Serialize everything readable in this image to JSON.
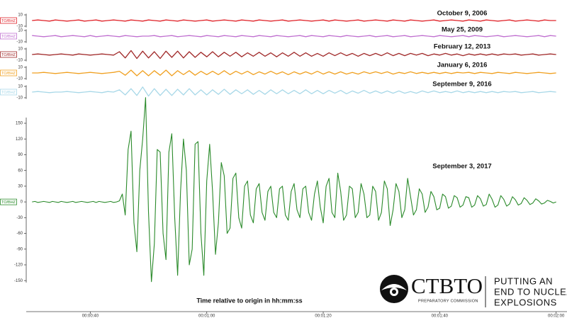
{
  "chart_data": [
    {
      "type": "line",
      "title": "October 9, 2006",
      "channel": "TO/BHZ",
      "color": "#e0242a",
      "x": [
        30,
        31,
        32,
        33,
        34,
        35,
        36,
        37,
        38,
        39,
        40,
        41,
        42,
        43,
        44,
        45,
        46,
        47,
        48,
        49,
        50,
        51,
        52,
        53,
        54,
        55,
        56,
        57,
        58,
        59,
        60,
        61,
        62,
        63,
        64,
        65,
        66,
        67,
        68,
        69,
        70,
        71,
        72,
        73,
        74,
        75,
        76,
        77,
        78,
        79,
        80,
        81,
        82,
        83,
        84,
        85,
        86,
        87,
        88,
        89,
        90,
        91,
        92,
        93,
        94,
        95,
        96,
        97,
        98,
        99,
        100,
        101,
        102,
        103,
        104,
        105,
        106,
        107,
        108,
        109,
        110,
        111,
        112,
        113,
        114,
        115,
        116,
        117,
        118,
        119,
        120
      ],
      "values": [
        0,
        1,
        0,
        -1,
        1,
        0,
        -1,
        0,
        1,
        -1,
        0,
        1,
        -1,
        0,
        1,
        0,
        -1,
        1,
        0,
        -1,
        1,
        0,
        -1,
        1,
        0,
        -1,
        1,
        0,
        -1,
        0,
        1,
        -1,
        0,
        1,
        0,
        -1,
        1,
        0,
        -1,
        1,
        0,
        -1,
        0,
        1,
        -1,
        0,
        1,
        0,
        -1,
        0,
        1,
        -1,
        1,
        0,
        -1,
        0,
        1,
        -1,
        0,
        1,
        0,
        -1,
        1,
        0,
        -1,
        1,
        0,
        -1,
        0,
        1,
        -1,
        0,
        1,
        0,
        -1,
        1,
        0,
        -1,
        1,
        0,
        -1,
        0,
        1,
        -1,
        0,
        1,
        0,
        -1,
        1,
        0,
        0
      ],
      "xlim": [
        29,
        121.5
      ],
      "ylim": [
        -12,
        12
      ],
      "yticks": [
        10,
        -10
      ]
    },
    {
      "type": "line",
      "title": "May 25, 2009",
      "channel": "TO/BHZ",
      "color": "#c070d0",
      "x": [
        30,
        31,
        32,
        33,
        34,
        35,
        36,
        37,
        38,
        39,
        40,
        41,
        42,
        43,
        44,
        45,
        46,
        47,
        48,
        49,
        50,
        51,
        52,
        53,
        54,
        55,
        56,
        57,
        58,
        59,
        60,
        61,
        62,
        63,
        64,
        65,
        66,
        67,
        68,
        69,
        70,
        71,
        72,
        73,
        74,
        75,
        76,
        77,
        78,
        79,
        80,
        81,
        82,
        83,
        84,
        85,
        86,
        87,
        88,
        89,
        90,
        91,
        92,
        93,
        94,
        95,
        96,
        97,
        98,
        99,
        100,
        101,
        102,
        103,
        104,
        105,
        106,
        107,
        108,
        109,
        110,
        111,
        112,
        113,
        114,
        115,
        116,
        117,
        118,
        119,
        120
      ],
      "values": [
        1,
        0,
        -1,
        0,
        1,
        -1,
        0,
        1,
        0,
        -1,
        1,
        -1,
        0,
        1,
        0,
        -1,
        1,
        0,
        -1,
        0,
        0,
        1,
        -1,
        0,
        1,
        -1,
        0,
        1,
        0,
        -1,
        1,
        0,
        -1,
        1,
        0,
        -1,
        1,
        0,
        -1,
        1,
        0,
        -1,
        1,
        0,
        -1,
        0,
        1,
        -1,
        1,
        0,
        -1,
        1,
        0,
        -1,
        1,
        0,
        -1,
        0,
        1,
        -1,
        0,
        1,
        -1,
        0,
        1,
        -1,
        0,
        1,
        0,
        -1,
        1,
        0,
        -1,
        0,
        1,
        -1,
        1,
        0,
        -1,
        0,
        1,
        -1,
        0,
        1,
        0,
        -1,
        0,
        1,
        -1,
        1,
        0
      ],
      "xlim": [
        29,
        121.5
      ],
      "ylim": [
        -12,
        12
      ],
      "yticks": [
        10,
        -10
      ]
    },
    {
      "type": "line",
      "title": "February 12, 2013",
      "channel": "TO/BHZ",
      "color": "#a02828",
      "x": [
        30,
        31,
        32,
        33,
        34,
        35,
        36,
        37,
        38,
        39,
        40,
        41,
        42,
        43,
        44,
        45,
        46,
        47,
        48,
        49,
        50,
        51,
        52,
        53,
        54,
        55,
        56,
        57,
        58,
        59,
        60,
        61,
        62,
        63,
        64,
        65,
        66,
        67,
        68,
        69,
        70,
        71,
        72,
        73,
        74,
        75,
        76,
        77,
        78,
        79,
        80,
        81,
        82,
        83,
        84,
        85,
        86,
        87,
        88,
        89,
        90,
        91,
        92,
        93,
        94,
        95,
        96,
        97,
        98,
        99,
        100,
        101,
        102,
        103,
        104,
        105,
        106,
        107,
        108,
        109,
        110,
        111,
        112,
        113,
        114,
        115,
        116,
        117,
        118,
        119,
        120
      ],
      "values": [
        0,
        1,
        0,
        -1,
        0,
        1,
        0,
        -1,
        1,
        0,
        -1,
        0,
        1,
        0,
        -1,
        5,
        -6,
        7,
        -7,
        6,
        -6,
        5,
        -7,
        6,
        -5,
        6,
        -6,
        5,
        -5,
        4,
        -4,
        5,
        -4,
        4,
        -3,
        4,
        -4,
        3,
        -3,
        4,
        -3,
        3,
        -4,
        3,
        -3,
        4,
        -3,
        3,
        -3,
        2,
        -3,
        3,
        -2,
        3,
        -2,
        2,
        -3,
        2,
        -2,
        2,
        -2,
        3,
        -2,
        2,
        -2,
        2,
        -1,
        2,
        -2,
        1,
        -1,
        2,
        -1,
        1,
        -2,
        1,
        -1,
        1,
        -1,
        1,
        -1,
        1,
        0,
        1,
        -1,
        0,
        1,
        -1,
        0,
        1,
        0
      ],
      "xlim": [
        29,
        121.5
      ],
      "ylim": [
        -12,
        12
      ],
      "yticks": [
        10,
        -10
      ]
    },
    {
      "type": "line",
      "title": "January 6, 2016",
      "channel": "TO/BHZ",
      "color": "#f0a020",
      "x": [
        30,
        31,
        32,
        33,
        34,
        35,
        36,
        37,
        38,
        39,
        40,
        41,
        42,
        43,
        44,
        45,
        46,
        47,
        48,
        49,
        50,
        51,
        52,
        53,
        54,
        55,
        56,
        57,
        58,
        59,
        60,
        61,
        62,
        63,
        64,
        65,
        66,
        67,
        68,
        69,
        70,
        71,
        72,
        73,
        74,
        75,
        76,
        77,
        78,
        79,
        80,
        81,
        82,
        83,
        84,
        85,
        86,
        87,
        88,
        89,
        90,
        91,
        92,
        93,
        94,
        95,
        96,
        97,
        98,
        99,
        100,
        101,
        102,
        103,
        104,
        105,
        106,
        107,
        108,
        109,
        110,
        111,
        112,
        113,
        114,
        115,
        116,
        117,
        118,
        119,
        120
      ],
      "values": [
        0,
        0,
        1,
        0,
        -1,
        0,
        1,
        0,
        -1,
        0,
        1,
        0,
        -1,
        0,
        1,
        3,
        -4,
        5,
        -5,
        4,
        -5,
        4,
        -4,
        5,
        -5,
        4,
        -3,
        4,
        -4,
        3,
        -3,
        3,
        -3,
        4,
        -3,
        3,
        -2,
        3,
        -3,
        2,
        -2,
        3,
        -2,
        2,
        -3,
        2,
        -2,
        2,
        -2,
        3,
        -2,
        2,
        -2,
        2,
        -2,
        1,
        -2,
        2,
        -1,
        2,
        -1,
        2,
        -2,
        1,
        -1,
        2,
        -1,
        1,
        -1,
        1,
        -1,
        1,
        -1,
        1,
        0,
        1,
        -1,
        1,
        0,
        -1,
        1,
        0,
        -1,
        1,
        0,
        -1,
        0,
        1,
        0,
        -1,
        0
      ],
      "xlim": [
        29,
        121.5
      ],
      "ylim": [
        -12,
        12
      ],
      "yticks": [
        10,
        -10
      ]
    },
    {
      "type": "line",
      "title": "September 9, 2016",
      "channel": "TO/BHZ",
      "color": "#a8d8e8",
      "x": [
        30,
        31,
        32,
        33,
        34,
        35,
        36,
        37,
        38,
        39,
        40,
        41,
        42,
        43,
        44,
        45,
        46,
        47,
        48,
        49,
        50,
        51,
        52,
        53,
        54,
        55,
        56,
        57,
        58,
        59,
        60,
        61,
        62,
        63,
        64,
        65,
        66,
        67,
        68,
        69,
        70,
        71,
        72,
        73,
        74,
        75,
        76,
        77,
        78,
        79,
        80,
        81,
        82,
        83,
        84,
        85,
        86,
        87,
        88,
        89,
        90,
        91,
        92,
        93,
        94,
        95,
        96,
        97,
        98,
        99,
        100,
        101,
        102,
        103,
        104,
        105,
        106,
        107,
        108,
        109,
        110,
        111,
        112,
        113,
        114,
        115,
        116,
        117,
        118,
        119,
        120
      ],
      "values": [
        0,
        1,
        0,
        -1,
        0,
        0,
        1,
        0,
        -1,
        0,
        1,
        0,
        -1,
        1,
        0,
        4,
        -5,
        6,
        -6,
        9,
        -7,
        6,
        -6,
        5,
        -6,
        5,
        -5,
        6,
        -5,
        4,
        -5,
        4,
        -4,
        5,
        -4,
        4,
        -3,
        4,
        -4,
        3,
        -4,
        4,
        -3,
        4,
        -3,
        3,
        -3,
        4,
        -3,
        3,
        -3,
        3,
        -2,
        3,
        -3,
        2,
        -2,
        3,
        -2,
        2,
        -2,
        2,
        -2,
        2,
        -2,
        1,
        -2,
        2,
        -1,
        2,
        -1,
        1,
        -1,
        2,
        -1,
        1,
        -1,
        1,
        -1,
        1,
        -1,
        1,
        0,
        1,
        -1,
        0,
        1,
        -1,
        0,
        1,
        0
      ],
      "xlim": [
        29,
        121.5
      ],
      "ylim": [
        -12,
        12
      ],
      "yticks": [
        10,
        -10
      ]
    },
    {
      "type": "line",
      "title": "September 3, 2017",
      "channel": "TO/BHZ",
      "color": "#2a8a2a",
      "xlabel": "Time relative to origin in hh:mm:ss",
      "x": [
        30,
        30.5,
        31,
        31.5,
        32,
        32.5,
        33,
        33.5,
        34,
        34.5,
        35,
        35.5,
        36,
        36.5,
        37,
        37.5,
        38,
        38.5,
        39,
        39.5,
        40,
        40.5,
        41,
        41.5,
        42,
        42.5,
        43,
        43.5,
        44,
        44.5,
        45,
        45.5,
        46,
        46.5,
        47,
        47.5,
        48,
        48.5,
        49,
        49.5,
        50,
        50.5,
        51,
        51.5,
        52,
        52.5,
        53,
        53.5,
        54,
        54.5,
        55,
        55.5,
        56,
        56.5,
        57,
        57.5,
        58,
        58.5,
        59,
        59.5,
        60,
        60.5,
        61,
        61.5,
        62,
        62.5,
        63,
        63.5,
        64,
        64.5,
        65,
        65.5,
        66,
        66.5,
        67,
        67.5,
        68,
        68.5,
        69,
        69.5,
        70,
        70.5,
        71,
        71.5,
        72,
        72.5,
        73,
        73.5,
        74,
        74.5,
        75,
        75.5,
        76,
        76.5,
        77,
        77.5,
        78,
        78.5,
        79,
        79.5,
        80,
        80.5,
        81,
        81.5,
        82,
        82.5,
        83,
        83.5,
        84,
        84.5,
        85,
        85.5,
        86,
        86.5,
        87,
        87.5,
        88,
        88.5,
        89,
        89.5,
        90,
        90.5,
        91,
        91.5,
        92,
        92.5,
        93,
        93.5,
        94,
        94.5,
        95,
        95.5,
        96,
        96.5,
        97,
        97.5,
        98,
        98.5,
        99,
        99.5,
        100,
        100.5,
        101,
        101.5,
        102,
        102.5,
        103,
        103.5,
        104,
        104.5,
        105,
        105.5,
        106,
        106.5,
        107,
        107.5,
        108,
        108.5,
        109,
        109.5,
        110,
        110.5,
        111,
        111.5,
        112,
        112.5,
        113,
        113.5,
        114,
        114.5,
        115,
        115.5,
        116,
        116.5,
        117,
        117.5,
        118,
        118.5,
        119,
        119.5,
        120
      ],
      "values": [
        0,
        1,
        -1,
        0,
        1,
        0,
        -1,
        1,
        0,
        -1,
        1,
        0,
        -1,
        0,
        1,
        -1,
        0,
        1,
        0,
        -1,
        0,
        1,
        -1,
        1,
        0,
        -1,
        0,
        1,
        -1,
        0,
        2,
        15,
        -25,
        100,
        135,
        -40,
        -95,
        60,
        120,
        199,
        -20,
        -152,
        -80,
        100,
        95,
        -60,
        -110,
        95,
        130,
        -30,
        -140,
        20,
        120,
        60,
        -120,
        -90,
        110,
        115,
        -60,
        -140,
        40,
        110,
        20,
        -100,
        -40,
        75,
        50,
        -60,
        -50,
        45,
        55,
        -30,
        -50,
        30,
        40,
        -25,
        -40,
        25,
        35,
        -20,
        -35,
        20,
        30,
        -20,
        -30,
        25,
        30,
        -25,
        -35,
        20,
        35,
        -15,
        -30,
        25,
        30,
        -20,
        -35,
        15,
        40,
        -10,
        -40,
        30,
        45,
        -20,
        -30,
        55,
        20,
        -35,
        -25,
        30,
        25,
        -30,
        -20,
        35,
        15,
        -30,
        -25,
        30,
        20,
        -35,
        -20,
        40,
        25,
        -45,
        -15,
        35,
        20,
        -30,
        -15,
        45,
        10,
        -25,
        -15,
        25,
        15,
        -20,
        -10,
        20,
        10,
        -15,
        -12,
        15,
        10,
        -12,
        -8,
        12,
        8,
        -10,
        -6,
        10,
        8,
        -10,
        -6,
        12,
        6,
        -8,
        -5,
        15,
        5,
        -10,
        -6,
        12,
        5,
        -8,
        -4,
        10,
        4,
        -6,
        -3,
        8,
        3,
        -5,
        -2,
        6,
        2,
        -4,
        -2,
        3,
        1,
        -2,
        0
      ],
      "xlim": [
        29,
        121.5
      ],
      "ylim": [
        -170,
        200
      ],
      "yticks": [
        150,
        120,
        90,
        60,
        30,
        0,
        -30,
        -60,
        -90,
        -120,
        -150
      ],
      "xticks": [
        {
          "value": 40,
          "label": "00:00:40"
        },
        {
          "value": 60,
          "label": "00:01:00"
        },
        {
          "value": 80,
          "label": "00:01:20"
        },
        {
          "value": 100,
          "label": "00:01:40"
        },
        {
          "value": 120,
          "label": "00:02:00"
        }
      ]
    }
  ],
  "logo": {
    "name": "CTBTO",
    "subtitle": "PREPARATORY COMMISSION",
    "slogan": [
      "PUTTING AN",
      "END TO NUCLEAR",
      "EXPLOSIONS"
    ]
  }
}
